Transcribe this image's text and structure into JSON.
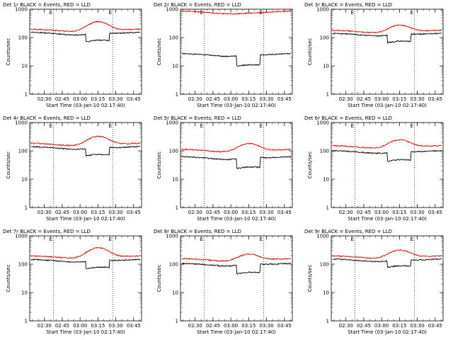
{
  "chart_data": [
    {
      "type": "line",
      "title": "Det 1r  BLACK = Events, RED = LLD",
      "xlabel": "Start Time (03-Jan-10 02:17:40)",
      "ylabel": "Counts/sec",
      "yscale": "log",
      "ylim": [
        1,
        1000
      ],
      "y_ticks": [
        "1",
        "10",
        "100",
        "1000"
      ],
      "x_ticks": [
        "02:30",
        "02:45",
        "03:00",
        "03:15",
        "03:30",
        "03:45"
      ],
      "marker_labels": [
        "E",
        "E"
      ],
      "series": [
        {
          "color": "#000000",
          "base": 135,
          "dip": 0.55,
          "hump": 1.2
        },
        {
          "color": "#e00000",
          "base": 175,
          "dip": 1.0,
          "hump": 2.3
        }
      ]
    },
    {
      "type": "line",
      "title": "Det 2r  BLACK = Events, RED = LLD",
      "xlabel": "Start Time (03-Jan-10 02:17:40)",
      "ylabel": "Counts/sec",
      "yscale": "log",
      "ylim": [
        1,
        1000
      ],
      "y_ticks": [
        "1",
        "10",
        "100",
        "1000"
      ],
      "x_ticks": [
        "02:30",
        "02:45",
        "03:00",
        "03:15",
        "03:30",
        "03:45"
      ],
      "marker_labels": [
        "E",
        "E"
      ],
      "series": [
        {
          "color": "#000000",
          "base": 24,
          "dip": 0.45,
          "hump": 1.1
        },
        {
          "color": "#e00000",
          "base": 760,
          "dip": 1.0,
          "hump": 1.05
        }
      ]
    },
    {
      "type": "line",
      "title": "Det 3r  BLACK = Events, RED = LLD",
      "xlabel": "Start Time (03-Jan-10 02:17:40)",
      "ylabel": "Counts/sec",
      "yscale": "log",
      "ylim": [
        1,
        1000
      ],
      "y_ticks": [
        "1",
        "10",
        "100",
        "1000"
      ],
      "x_ticks": [
        "02:30",
        "02:45",
        "03:00",
        "03:15",
        "03:30",
        "03:45"
      ],
      "marker_labels": [
        "E",
        "E"
      ],
      "series": [
        {
          "color": "#000000",
          "base": 125,
          "dip": 0.55,
          "hump": 1.2
        },
        {
          "color": "#e00000",
          "base": 160,
          "dip": 1.0,
          "hump": 1.9
        }
      ]
    },
    {
      "type": "line",
      "title": "Det 4r  BLACK = Events, RED = LLD",
      "xlabel": "Start Time (03-Jan-10 02:17:40)",
      "ylabel": "Counts/sec",
      "yscale": "log",
      "ylim": [
        1,
        1000
      ],
      "y_ticks": [
        "1",
        "10",
        "100",
        "1000"
      ],
      "x_ticks": [
        "02:30",
        "02:45",
        "03:00",
        "03:15",
        "03:30",
        "03:45"
      ],
      "marker_labels": [
        "E",
        "E"
      ],
      "series": [
        {
          "color": "#000000",
          "base": 125,
          "dip": 0.55,
          "hump": 1.2
        },
        {
          "color": "#e00000",
          "base": 165,
          "dip": 1.0,
          "hump": 2.2
        }
      ]
    },
    {
      "type": "line",
      "title": "Det 5r  BLACK = Events, RED = LLD",
      "xlabel": "Start Time (03-Jan-10 02:17:40)",
      "ylabel": "Counts/sec",
      "yscale": "log",
      "ylim": [
        1,
        1000
      ],
      "y_ticks": [
        "1",
        "10",
        "100",
        "1000"
      ],
      "x_ticks": [
        "02:30",
        "02:45",
        "03:00",
        "03:15",
        "03:30",
        "03:45"
      ],
      "marker_labels": [
        "E",
        "E"
      ],
      "series": [
        {
          "color": "#000000",
          "base": 55,
          "dip": 0.45,
          "hump": 1.2
        },
        {
          "color": "#e00000",
          "base": 100,
          "dip": 1.0,
          "hump": 2.0
        }
      ]
    },
    {
      "type": "line",
      "title": "Det 6r  BLACK = Events, RED = LLD",
      "xlabel": "Start Time (03-Jan-10 02:17:40)",
      "ylabel": "Counts/sec",
      "yscale": "log",
      "ylim": [
        1,
        1000
      ],
      "y_ticks": [
        "1",
        "10",
        "100",
        "1000"
      ],
      "x_ticks": [
        "02:30",
        "02:45",
        "03:00",
        "03:15",
        "03:30",
        "03:45"
      ],
      "marker_labels": [
        "E",
        "E"
      ],
      "series": [
        {
          "color": "#000000",
          "base": 90,
          "dip": 0.5,
          "hump": 1.2
        },
        {
          "color": "#e00000",
          "base": 135,
          "dip": 1.0,
          "hump": 2.0
        }
      ]
    },
    {
      "type": "line",
      "title": "Det 7r  BLACK = Events, RED = LLD",
      "xlabel": "Start Time (03-Jan-10 02:17:40)",
      "ylabel": "Counts/sec",
      "yscale": "log",
      "ylim": [
        1,
        1000
      ],
      "y_ticks": [
        "1",
        "10",
        "100",
        "1000"
      ],
      "x_ticks": [
        "02:30",
        "02:45",
        "03:00",
        "03:15",
        "03:30",
        "03:45"
      ],
      "marker_labels": [
        "E",
        "E"
      ],
      "series": [
        {
          "color": "#000000",
          "base": 130,
          "dip": 0.55,
          "hump": 1.2
        },
        {
          "color": "#e00000",
          "base": 175,
          "dip": 1.0,
          "hump": 2.4
        }
      ]
    },
    {
      "type": "line",
      "title": "Det 8r  BLACK = Events, RED = LLD",
      "xlabel": "Start Time (03-Jan-10 02:17:40)",
      "ylabel": "Counts/sec",
      "yscale": "log",
      "ylim": [
        1,
        1000
      ],
      "y_ticks": [
        "1",
        "10",
        "100",
        "1000"
      ],
      "x_ticks": [
        "02:30",
        "02:45",
        "03:00",
        "03:15",
        "03:30",
        "03:45"
      ],
      "marker_labels": [
        "E",
        "E"
      ],
      "series": [
        {
          "color": "#000000",
          "base": 95,
          "dip": 0.5,
          "hump": 1.2
        },
        {
          "color": "#e00000",
          "base": 140,
          "dip": 1.0,
          "hump": 1.8
        }
      ]
    },
    {
      "type": "line",
      "title": "Det 9r  BLACK = Events, RED = LLD",
      "xlabel": "Start Time (03-Jan-10 02:17:40)",
      "ylabel": "Counts/sec",
      "yscale": "log",
      "ylim": [
        1,
        1000
      ],
      "y_ticks": [
        "1",
        "10",
        "100",
        "1000"
      ],
      "x_ticks": [
        "02:30",
        "02:45",
        "03:00",
        "03:15",
        "03:30",
        "03:45"
      ],
      "marker_labels": [
        "E",
        "E"
      ],
      "series": [
        {
          "color": "#000000",
          "base": 135,
          "dip": 0.6,
          "hump": 1.2
        },
        {
          "color": "#e00000",
          "base": 175,
          "dip": 1.0,
          "hump": 2.0
        }
      ]
    }
  ]
}
